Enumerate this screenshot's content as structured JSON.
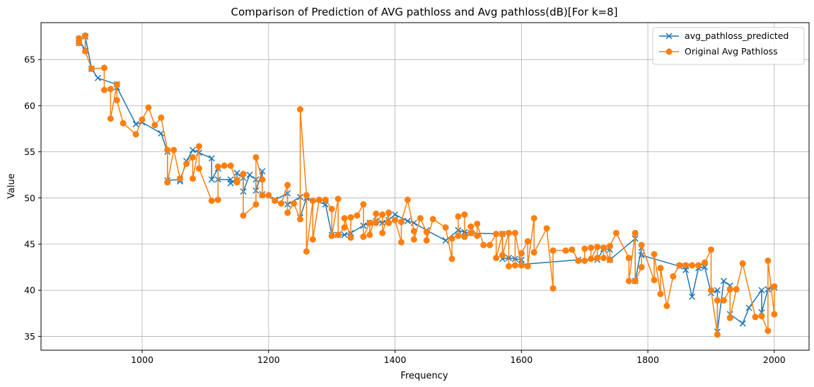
{
  "chart_data": {
    "type": "line",
    "title": "Comparison of Prediction of AVG pathloss and Avg pathloss(dB)[For k=8]",
    "xlabel": "Frequency",
    "ylabel": "Value",
    "xlim": [
      840,
      2055
    ],
    "ylim": [
      33.5,
      69
    ],
    "xticks": [
      1000,
      1200,
      1400,
      1600,
      1800,
      2000
    ],
    "yticks": [
      35,
      40,
      45,
      50,
      55,
      60,
      65
    ],
    "grid": true,
    "legend_position": "top-right",
    "series": [
      {
        "name": "avg_pathloss_predicted",
        "color": "#1f77b4",
        "marker": "x",
        "x": [
          900,
          900,
          910,
          910,
          920,
          930,
          960,
          960,
          990,
          1000,
          1030,
          1040,
          1040,
          1060,
          1060,
          1070,
          1080,
          1090,
          1110,
          1110,
          1120,
          1120,
          1140,
          1140,
          1150,
          1150,
          1160,
          1160,
          1170,
          1180,
          1180,
          1190,
          1190,
          1210,
          1230,
          1230,
          1250,
          1250,
          1260,
          1290,
          1300,
          1310,
          1320,
          1330,
          1350,
          1360,
          1370,
          1380,
          1390,
          1400,
          1420,
          1430,
          1450,
          1480,
          1500,
          1510,
          1520,
          1570,
          1570,
          1580,
          1590,
          1600,
          1600,
          1690,
          1720,
          1730,
          1740,
          1740,
          1780,
          1780,
          1790,
          1790,
          1850,
          1860,
          1860,
          1870,
          1880,
          1890,
          1900,
          1910,
          1910,
          1920,
          1930,
          1930,
          1950,
          1960,
          1980,
          1980,
          1990,
          2000
        ],
        "y": [
          66.8,
          67.2,
          66.0,
          67.5,
          64.0,
          63.0,
          62.3,
          62.0,
          58.0,
          58.2,
          57.0,
          55.0,
          51.9,
          52.0,
          51.8,
          54.0,
          55.2,
          54.9,
          54.3,
          52.0,
          53.2,
          52.0,
          52.0,
          51.6,
          51.9,
          52.7,
          52.2,
          50.7,
          52.5,
          52.0,
          50.8,
          52.9,
          50.4,
          49.8,
          50.5,
          49.3,
          50.1,
          47.9,
          50.0,
          49.3,
          46.0,
          46.0,
          46.0,
          46.2,
          47.0,
          47.3,
          47.5,
          47.3,
          47.6,
          48.2,
          47.5,
          47.3,
          46.5,
          45.4,
          46.5,
          46.3,
          46.2,
          46.1,
          43.4,
          43.5,
          43.4,
          43.3,
          42.8,
          43.3,
          43.3,
          44.5,
          44.4,
          43.3,
          45.6,
          41.0,
          44.6,
          43.8,
          42.6,
          42.6,
          42.2,
          39.3,
          42.4,
          42.5,
          39.7,
          40.0,
          35.5,
          41.0,
          40.5,
          37.4,
          36.4,
          38.1,
          40.0,
          37.6,
          40.1,
          40.3
        ]
      },
      {
        "name": "Original Avg Pathloss",
        "color": "#ff7f0e",
        "marker": "o",
        "x": [
          900,
          900,
          910,
          910,
          920,
          940,
          940,
          950,
          950,
          960,
          960,
          970,
          990,
          1000,
          1010,
          1020,
          1030,
          1040,
          1040,
          1050,
          1060,
          1070,
          1080,
          1080,
          1090,
          1090,
          1110,
          1120,
          1120,
          1130,
          1140,
          1150,
          1150,
          1160,
          1160,
          1180,
          1180,
          1190,
          1190,
          1200,
          1210,
          1220,
          1230,
          1230,
          1240,
          1250,
          1250,
          1260,
          1260,
          1270,
          1270,
          1280,
          1290,
          1300,
          1300,
          1310,
          1310,
          1320,
          1320,
          1330,
          1330,
          1340,
          1350,
          1350,
          1360,
          1360,
          1370,
          1370,
          1380,
          1380,
          1390,
          1390,
          1400,
          1410,
          1410,
          1420,
          1430,
          1430,
          1440,
          1450,
          1450,
          1460,
          1480,
          1490,
          1490,
          1500,
          1500,
          1510,
          1510,
          1520,
          1520,
          1530,
          1530,
          1540,
          1550,
          1560,
          1560,
          1570,
          1570,
          1580,
          1580,
          1590,
          1590,
          1600,
          1600,
          1610,
          1610,
          1620,
          1620,
          1640,
          1650,
          1650,
          1670,
          1680,
          1690,
          1700,
          1700,
          1710,
          1710,
          1720,
          1720,
          1730,
          1730,
          1740,
          1740,
          1750,
          1770,
          1770,
          1780,
          1780,
          1790,
          1790,
          1810,
          1810,
          1820,
          1820,
          1830,
          1840,
          1850,
          1860,
          1870,
          1880,
          1890,
          1900,
          1900,
          1910,
          1910,
          1920,
          1930,
          1930,
          1940,
          1950,
          1970,
          1980,
          1990,
          1990,
          2000,
          2000
        ],
        "y": [
          66.8,
          67.3,
          67.6,
          65.9,
          64.0,
          64.1,
          61.7,
          61.8,
          58.6,
          62.3,
          60.6,
          58.1,
          56.9,
          58.5,
          59.8,
          57.9,
          58.7,
          55.2,
          51.7,
          55.2,
          52.1,
          53.7,
          54.4,
          52.1,
          55.6,
          53.2,
          49.7,
          49.8,
          53.4,
          53.5,
          53.5,
          51.7,
          51.9,
          52.6,
          48.1,
          49.3,
          54.4,
          52.0,
          50.3,
          50.3,
          49.7,
          49.4,
          51.4,
          48.4,
          49.4,
          47.7,
          59.6,
          50.3,
          44.2,
          49.7,
          45.5,
          49.8,
          49.8,
          48.8,
          45.9,
          49.9,
          46.0,
          46.8,
          47.8,
          45.7,
          47.9,
          48.1,
          49.3,
          45.8,
          47.3,
          46.0,
          48.3,
          47.3,
          48.2,
          46.2,
          48.4,
          47.3,
          47.6,
          45.2,
          47.4,
          49.8,
          46.4,
          45.5,
          47.8,
          46.3,
          45.4,
          47.7,
          46.8,
          43.4,
          45.6,
          45.9,
          48.0,
          48.2,
          45.8,
          46.2,
          46.9,
          45.9,
          47.2,
          44.9,
          44.9,
          46.1,
          43.5,
          46.1,
          43.8,
          46.2,
          42.6,
          42.7,
          46.2,
          42.7,
          44.0,
          45.3,
          42.6,
          47.8,
          44.1,
          46.7,
          40.2,
          44.3,
          44.3,
          44.4,
          43.2,
          43.2,
          44.5,
          44.6,
          43.4,
          44.7,
          43.5,
          43.5,
          44.6,
          43.3,
          44.8,
          46.2,
          43.5,
          41.0,
          46.2,
          41.0,
          42.5,
          44.9,
          41.1,
          43.9,
          39.6,
          42.4,
          38.3,
          41.5,
          42.7,
          42.7,
          42.7,
          42.7,
          43.0,
          44.4,
          40.0,
          35.2,
          38.9,
          38.9,
          40.1,
          37.0,
          40.1,
          42.9,
          37.1,
          37.2,
          35.6,
          43.2,
          37.4,
          40.4
        ]
      }
    ]
  }
}
